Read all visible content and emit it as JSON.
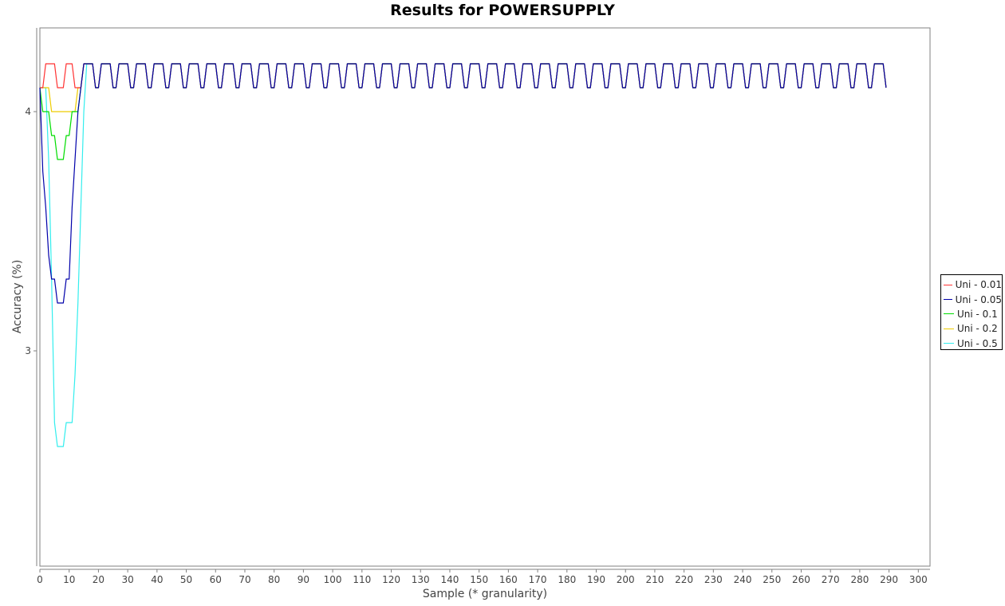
{
  "chart_data": {
    "type": "line",
    "title": "Results for POWERSUPPLY",
    "xlabel": "Sample (* granularity)",
    "ylabel": "Accuracy (%)",
    "xlim": [
      0,
      304
    ],
    "ylim": [
      2.1,
      4.35
    ],
    "x_ticks": [
      0,
      10,
      20,
      30,
      40,
      50,
      60,
      70,
      80,
      90,
      100,
      110,
      120,
      130,
      140,
      150,
      160,
      170,
      180,
      190,
      200,
      210,
      220,
      230,
      240,
      250,
      260,
      270,
      280,
      290,
      300
    ],
    "y_ticks": [
      3,
      4
    ],
    "grid": false,
    "legend_position": "right",
    "x_start": 0,
    "x_end": 289,
    "series": [
      {
        "name": "Uni - 0.01",
        "color": "#ff3333",
        "early": [
          4.1,
          4.1,
          4.2,
          4.2,
          4.2,
          4.2,
          4.1,
          4.1,
          4.1,
          4.2,
          4.2,
          4.2,
          4.1,
          4.1,
          4.1,
          4.2,
          4.2,
          4.2
        ],
        "pattern": [
          4.2,
          4.1,
          4.1,
          4.2,
          4.2,
          4.2
        ]
      },
      {
        "name": "Uni - 0.05",
        "color": "#0000aa",
        "early": [
          4.1,
          3.75,
          3.6,
          3.4,
          3.3,
          3.3,
          3.2,
          3.2,
          3.2,
          3.3,
          3.3,
          3.6,
          3.8,
          4.0,
          4.1,
          4.2,
          4.2,
          4.2
        ],
        "pattern": [
          4.2,
          4.1,
          4.1,
          4.2,
          4.2,
          4.2
        ]
      },
      {
        "name": "Uni - 0.1",
        "color": "#00dd00",
        "early": [
          4.1,
          4.0,
          4.0,
          4.0,
          3.9,
          3.9,
          3.8,
          3.8,
          3.8,
          3.9,
          3.9,
          4.0,
          4.0,
          4.0,
          4.1,
          4.2,
          4.2,
          4.2
        ],
        "pattern": [
          4.2,
          4.1,
          4.1,
          4.2,
          4.2,
          4.2
        ]
      },
      {
        "name": "Uni - 0.2",
        "color": "#eecc00",
        "early": [
          4.1,
          4.1,
          4.1,
          4.1,
          4.0,
          4.0,
          4.0,
          4.0,
          4.0,
          4.0,
          4.0,
          4.0,
          4.0,
          4.1,
          4.1,
          4.2,
          4.2,
          4.2
        ],
        "pattern": [
          4.2,
          4.1,
          4.1,
          4.2,
          4.2,
          4.2
        ]
      },
      {
        "name": "Uni - 0.5",
        "color": "#33eeee",
        "early": [
          4.1,
          4.1,
          4.1,
          3.8,
          3.3,
          2.7,
          2.6,
          2.6,
          2.6,
          2.7,
          2.7,
          2.7,
          2.9,
          3.2,
          3.6,
          4.0,
          4.2,
          4.2
        ],
        "pattern": [
          4.2,
          4.1,
          4.1,
          4.2,
          4.2,
          4.2
        ]
      }
    ]
  }
}
